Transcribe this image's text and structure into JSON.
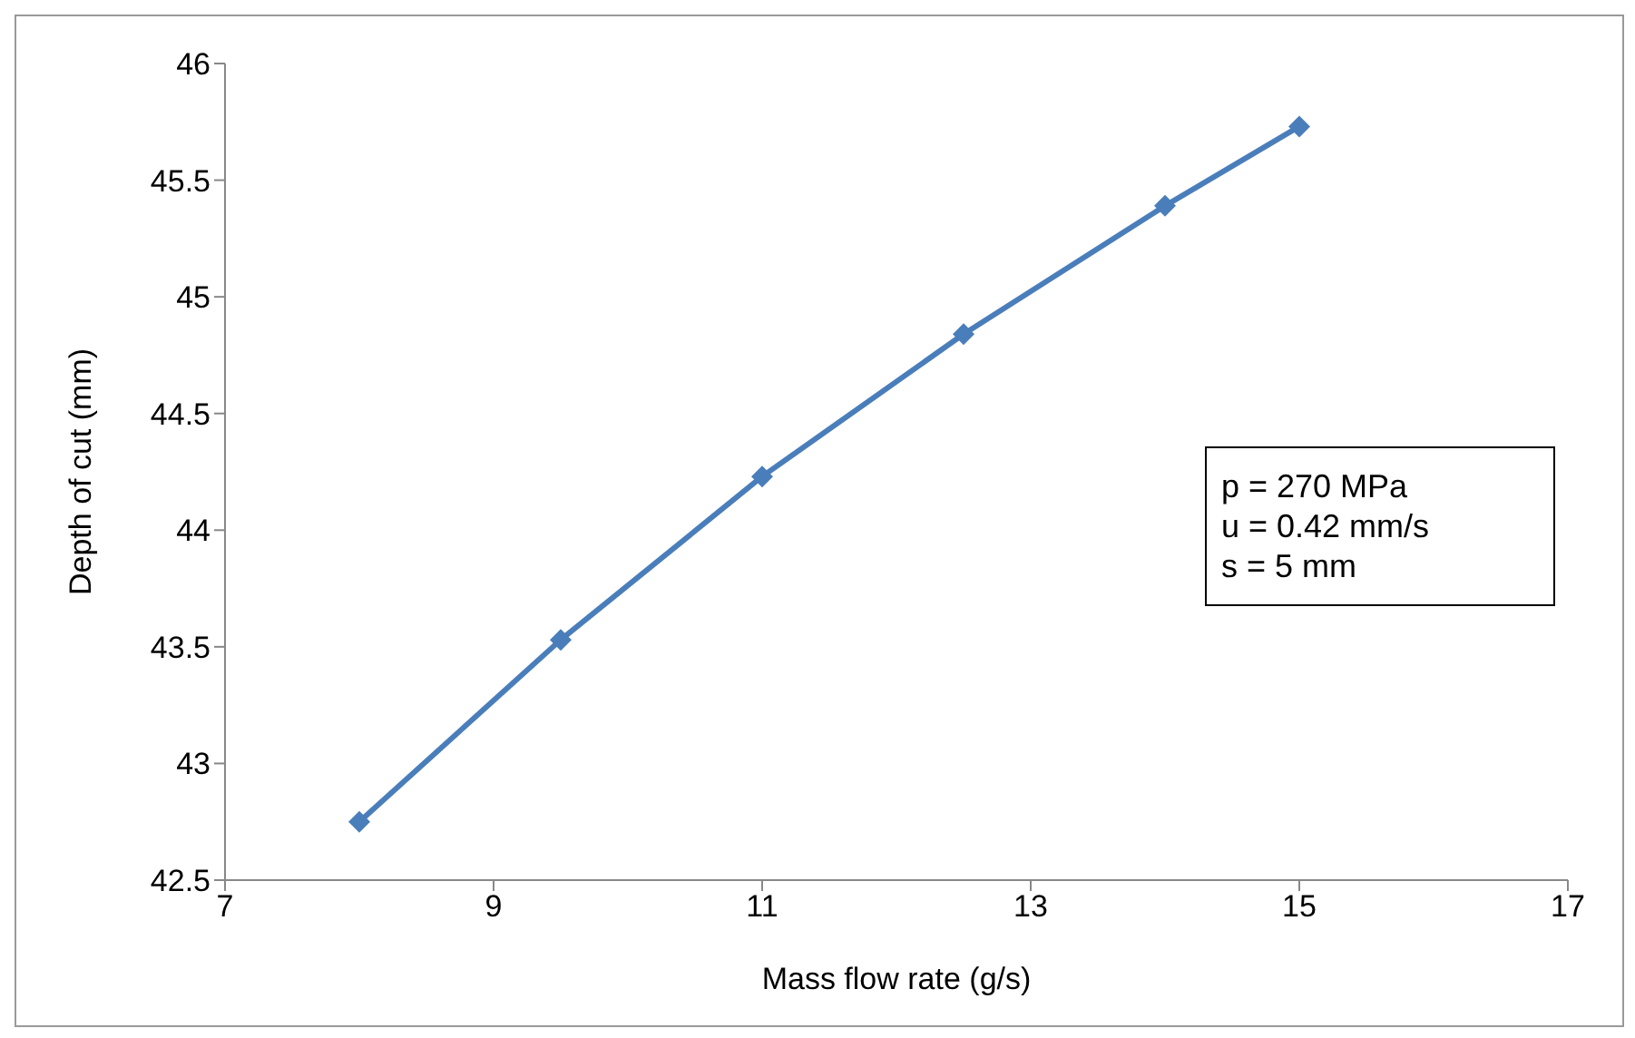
{
  "chart_data": {
    "type": "line",
    "xlabel": "Mass flow rate (g/s)",
    "ylabel": "Depth of cut (mm)",
    "x": [
      8,
      9.5,
      11,
      12.5,
      14,
      15
    ],
    "series": [
      {
        "color": "#4a7ebb",
        "values": [
          42.75,
          43.53,
          44.23,
          44.84,
          45.39,
          45.73
        ]
      }
    ],
    "xlim": [
      7,
      17
    ],
    "xticks": [
      7,
      9,
      11,
      13,
      15,
      17
    ],
    "ylim": [
      42.5,
      46
    ],
    "yticks": [
      42.5,
      43,
      43.5,
      44,
      44.5,
      45,
      45.5,
      46
    ],
    "marker": "diamond",
    "line_style": "solid",
    "grid": false,
    "legend": false,
    "annotations": [
      "p = 270 MPa\nu = 0.42 mm/s\ns = 5 mm"
    ]
  }
}
